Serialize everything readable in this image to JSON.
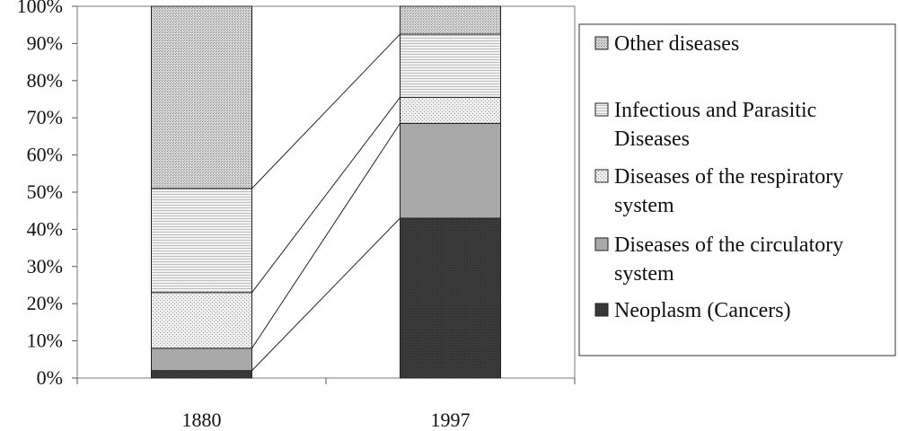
{
  "chart_data": {
    "type": "bar",
    "stacked": true,
    "categories": [
      "1880",
      "1997"
    ],
    "series": [
      {
        "name": "Neoplasm (Cancers)",
        "values": [
          2,
          43
        ],
        "fill": "#3a3a3a",
        "pattern": "solid-dark"
      },
      {
        "name": "Diseases of the circulatory system",
        "values": [
          6,
          25.5
        ],
        "fill": "#a9a9a9",
        "pattern": "solid-gray"
      },
      {
        "name": "Diseases of the respiratory system",
        "values": [
          15,
          7
        ],
        "fill": "#e6e6e6",
        "pattern": "dots"
      },
      {
        "name": "Infectious and Parasitic Diseases",
        "values": [
          28,
          17
        ],
        "fill": "#ebebeb",
        "pattern": "horizontal-lines"
      },
      {
        "name": "Other diseases",
        "values": [
          49,
          7.5
        ],
        "fill": "#c9c9c9",
        "pattern": "dense-dots"
      }
    ],
    "legend_order": [
      4,
      3,
      2,
      1,
      0
    ],
    "legend_lines": [
      [
        "Other diseases"
      ],
      [
        "Infectious and Parasitic",
        "Diseases"
      ],
      [
        "Diseases of the respiratory",
        "system"
      ],
      [
        "Diseases of the circulatory",
        "system"
      ],
      [
        "Neoplasm (Cancers)"
      ]
    ],
    "yticks": [
      "0%",
      "10%",
      "20%",
      "30%",
      "40%",
      "50%",
      "60%",
      "70%",
      "80%",
      "90%",
      "100%"
    ],
    "ylim": [
      0,
      100
    ],
    "title": "",
    "xlabel": "",
    "ylabel": "",
    "legend_position": "right",
    "grid": false,
    "connector_lines": true
  }
}
